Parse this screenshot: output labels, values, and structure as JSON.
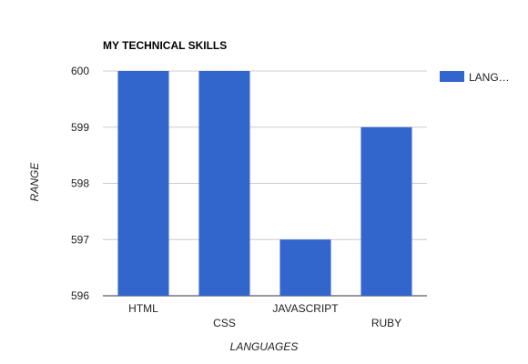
{
  "chart_data": {
    "type": "bar",
    "title": "MY TECHNICAL SKILLS",
    "xlabel": "LANGUAGES",
    "ylabel": "RANGE",
    "categories": [
      "HTML",
      "CSS",
      "JAVASCRIPT",
      "RUBY"
    ],
    "series": [
      {
        "name": "LANG…",
        "values": [
          600,
          600,
          597,
          599
        ],
        "color": "#3366cc"
      }
    ],
    "ylim": [
      596,
      600
    ],
    "yticks": [
      "596",
      "597",
      "598",
      "599",
      "600"
    ],
    "grid": true,
    "legend_position": "right",
    "label_stagger": true
  }
}
